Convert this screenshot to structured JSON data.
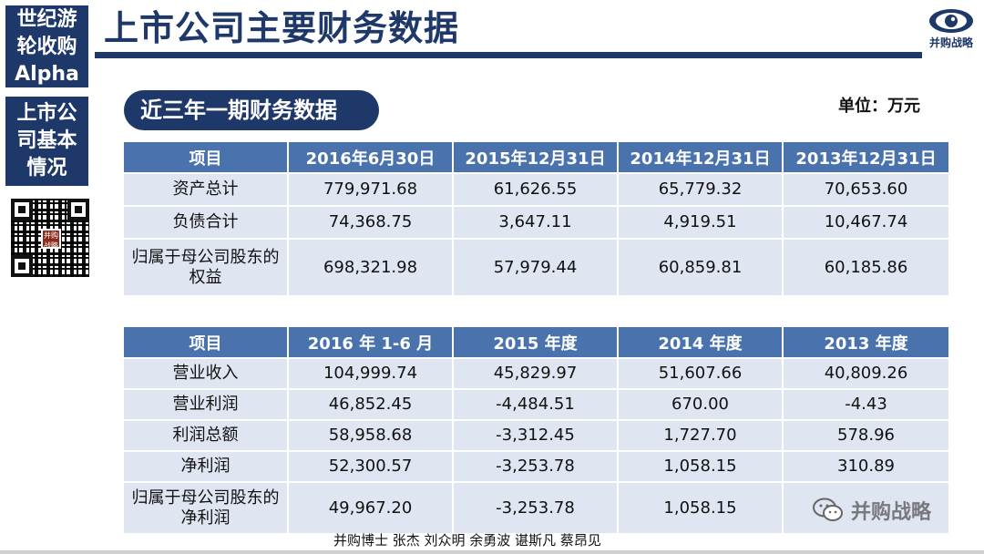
{
  "sidebar": {
    "series_lines": [
      "世纪游",
      "轮收购",
      "Alpha"
    ],
    "section_lines": [
      "上市公",
      "司基本",
      "情况"
    ],
    "qr_badge": "并购战略"
  },
  "header": {
    "title": "上市公司主要财务数据",
    "logo_text": "并购战略",
    "accent_color": "#1e3869"
  },
  "section": {
    "label": "近三年一期财务数据",
    "unit": "单位：万元"
  },
  "balance_table": {
    "headers": [
      "项目",
      "2016年6月30日",
      "2015年12月31日",
      "2014年12月31日",
      "2013年12月31日"
    ],
    "rows": [
      [
        "资产总计",
        "779,971.68",
        "61,626.55",
        "65,779.32",
        "70,653.60"
      ],
      [
        "负债合计",
        "74,368.75",
        "3,647.11",
        "4,919.51",
        "10,467.74"
      ],
      [
        "归属于母公司股东的权益",
        "698,321.98",
        "57,979.44",
        "60,859.81",
        "60,185.86"
      ]
    ]
  },
  "income_table": {
    "headers": [
      "项目",
      "2016 年 1-6 月",
      "2015 年度",
      "2014 年度",
      "2013 年度"
    ],
    "rows": [
      [
        "营业收入",
        "104,999.74",
        "45,829.97",
        "51,607.66",
        "40,809.26"
      ],
      [
        "营业利润",
        "46,852.45",
        "-4,484.51",
        "670.00",
        "-4.43"
      ],
      [
        "利润总额",
        "58,958.68",
        "-3,312.45",
        "1,727.70",
        "578.96"
      ],
      [
        "净利润",
        "52,300.57",
        "-3,253.78",
        "1,058.15",
        "310.89"
      ],
      [
        "归属于母公司股东的净利润",
        "49,967.20",
        "-3,253.78",
        "1,058.15",
        ""
      ]
    ]
  },
  "footer": {
    "authors": "并购博士 张杰 刘众明 余勇波 谌斯凡 蔡昂见",
    "watermark": "并购战略"
  }
}
